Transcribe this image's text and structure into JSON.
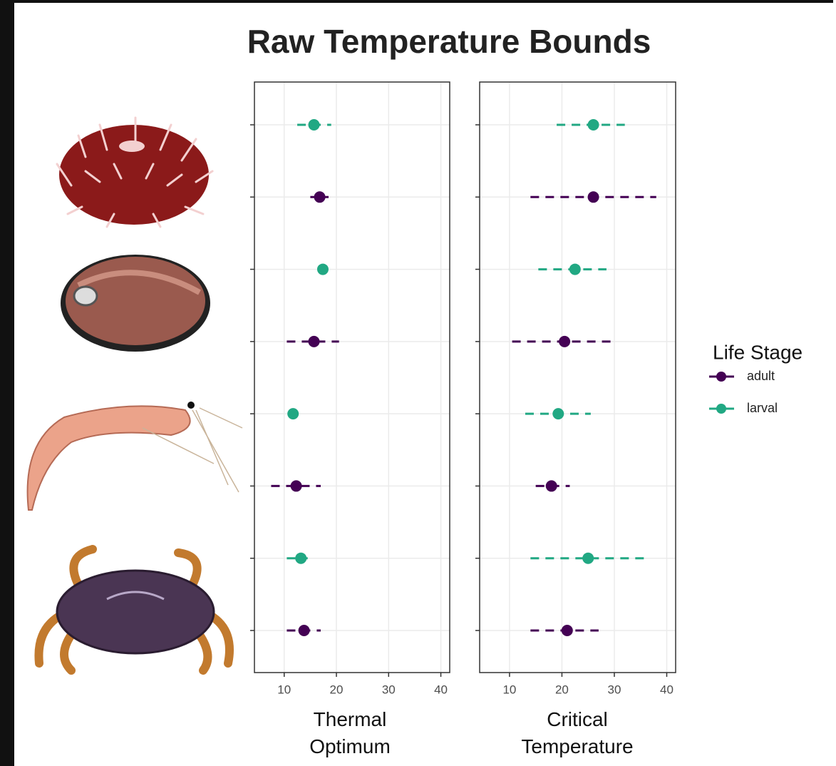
{
  "chart_data": [
    {
      "type": "pointrange",
      "title": "Raw Temperature Bounds",
      "legend_title": "Life Stage",
      "xlabel": "Thermal Optimum",
      "categories": [
        null,
        null,
        null,
        null,
        null,
        null,
        null,
        null
      ],
      "xlim": [
        4.3,
        41.7
      ],
      "xticks": [
        10,
        20,
        30,
        40
      ],
      "grid": true,
      "series": [
        {
          "name": "adult",
          "color": "#440154",
          "values": [
            null,
            16.8,
            null,
            15.7,
            null,
            12.3,
            null,
            13.8
          ],
          "low": [
            null,
            15,
            null,
            10.5,
            null,
            7.5,
            null,
            10.5
          ],
          "high": [
            null,
            18.5,
            null,
            20.5,
            null,
            17,
            null,
            17
          ]
        },
        {
          "name": "larval",
          "color": "#21a883",
          "values": [
            15.7,
            null,
            17.4,
            null,
            11.7,
            null,
            13.2,
            null
          ],
          "low": [
            12.5,
            null,
            16.8,
            null,
            11.2,
            null,
            10.5,
            null
          ],
          "high": [
            19,
            null,
            18,
            null,
            12.2,
            null,
            14.5,
            null
          ]
        }
      ]
    },
    {
      "type": "pointrange",
      "xlabel": "Critical Temperature",
      "categories": [
        null,
        null,
        null,
        null,
        null,
        null,
        null,
        null
      ],
      "xlim": [
        4.3,
        41.7
      ],
      "xticks": [
        10,
        20,
        30,
        40
      ],
      "grid": true,
      "series": [
        {
          "name": "adult",
          "color": "#440154",
          "values": [
            null,
            26,
            null,
            20.5,
            null,
            18,
            null,
            21
          ],
          "low": [
            null,
            14,
            null,
            10.5,
            null,
            15,
            null,
            14
          ],
          "high": [
            null,
            38,
            null,
            30,
            null,
            21.5,
            null,
            27
          ]
        },
        {
          "name": "larval",
          "color": "#21a883",
          "values": [
            26,
            null,
            22.5,
            null,
            19.3,
            null,
            25,
            null
          ],
          "low": [
            19,
            null,
            15.5,
            null,
            13,
            null,
            14,
            null
          ],
          "high": [
            32,
            null,
            28.5,
            null,
            25.5,
            null,
            36,
            null
          ]
        }
      ]
    }
  ]
}
